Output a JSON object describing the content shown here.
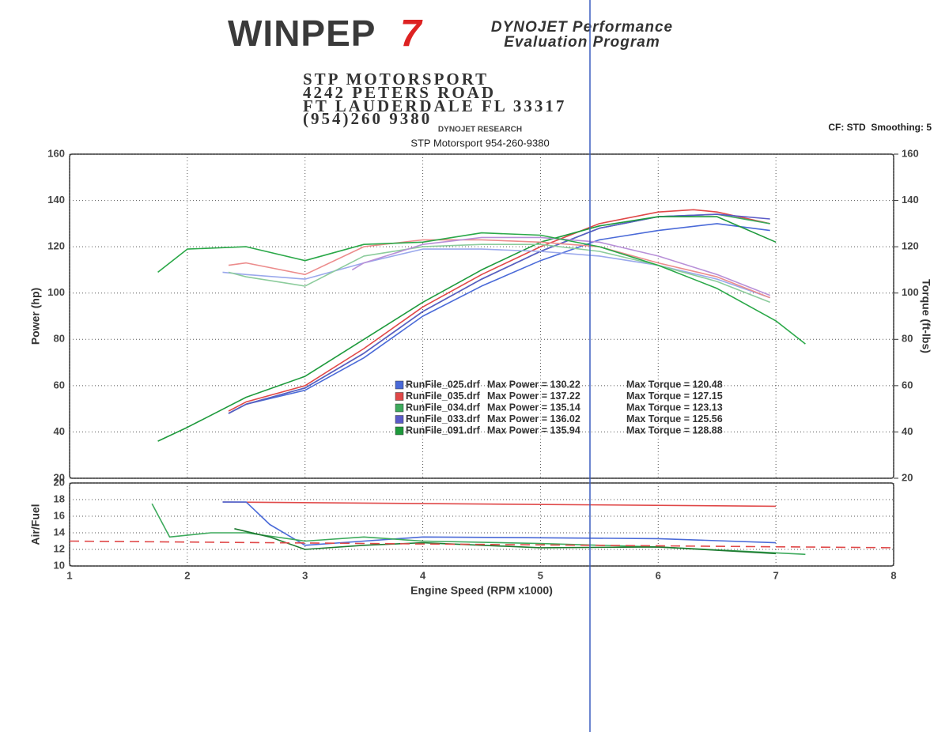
{
  "header": {
    "logo": "WINPEP",
    "logo_version": "7",
    "tagline_1": "DYNOJET Performance",
    "tagline_2": "Evaluation Program",
    "address": [
      "STP MOTORSPORT",
      "4242 PETERS ROAD",
      "FT LAUDERDALE FL 33317",
      "(954)260 9380"
    ],
    "research": "DYNOJET RESEARCH",
    "shop": "STP Motorsport 954-260-9380",
    "settings": "CF: STD  Smoothing: 5"
  },
  "chart_data": [
    {
      "type": "line",
      "ylabel": "Power (hp)",
      "y2label": "Torque (ft-lbs)",
      "xlim": [
        1,
        8
      ],
      "ylim": [
        20,
        160
      ],
      "yticks": [
        20,
        40,
        60,
        80,
        100,
        120,
        140,
        160
      ],
      "y2lim": [
        20,
        160
      ],
      "y2ticks": [
        20,
        40,
        60,
        80,
        100,
        120,
        140,
        160
      ],
      "grid": true,
      "series": [
        {
          "name": "RunFile_025.drf",
          "max_power": "Max Power = 130.22",
          "max_torque": "Max Torque = 120.48",
          "color": "#4a6ad8",
          "x": [
            2.35,
            2.5,
            3,
            3.5,
            4,
            4.5,
            5,
            5.5,
            6,
            6.5,
            6.95
          ],
          "values": [
            48,
            52,
            58,
            72,
            90,
            103,
            114,
            123,
            127,
            130,
            127
          ]
        },
        {
          "name": "RunFile_035.drf",
          "max_power": "Max Power = 137.22",
          "max_torque": "Max Torque = 127.15",
          "color": "#e04848",
          "x": [
            2.35,
            2.5,
            3,
            3.5,
            4,
            4.5,
            5,
            5.5,
            6,
            6.3,
            6.5,
            6.95
          ],
          "values": [
            49,
            53,
            60,
            76,
            94,
            108,
            120,
            130,
            135,
            136,
            135,
            130
          ]
        },
        {
          "name": "RunFile_034.drf",
          "max_power": "Max Power = 135.14",
          "max_torque": "Max Torque = 123.13",
          "color": "#3daa5c",
          "x": [
            2.35,
            2.5,
            3,
            3.5,
            4,
            4.5,
            5,
            5.5,
            6,
            6.5,
            6.95
          ],
          "values": [
            48,
            52,
            59,
            74,
            92,
            106,
            118,
            128,
            133,
            134,
            130
          ]
        },
        {
          "name": "RunFile_033.drf",
          "max_power": "Max Power = 136.02",
          "max_torque": "Max Torque = 125.56",
          "color": "#5a5ac8",
          "x": [
            2.35,
            2.5,
            3,
            3.5,
            4,
            4.5,
            5,
            5.5,
            6,
            6.5,
            6.95
          ],
          "values": [
            48,
            52,
            59,
            74,
            92,
            106,
            118,
            128,
            133,
            134,
            132
          ]
        },
        {
          "name": "RunFile_091.drf",
          "max_power": "Max Power = 135.94",
          "max_torque": "Max Torque = 128.88",
          "color": "#1e9a3c",
          "x": [
            1.75,
            2,
            2.5,
            3,
            3.5,
            4,
            4.5,
            5,
            5.5,
            6,
            6.5,
            7
          ],
          "values": [
            36,
            42,
            55,
            64,
            80,
            96,
            110,
            122,
            129,
            133,
            133,
            122
          ]
        },
        {
          "axis": "y2",
          "color": "#9aa8ec",
          "x": [
            2.3,
            2.5,
            3,
            3.5,
            4,
            4.5,
            5,
            5.5,
            6,
            6.5,
            6.95
          ],
          "values": [
            109,
            108,
            106,
            113,
            119,
            119,
            118,
            116,
            112,
            106,
            98
          ]
        },
        {
          "axis": "y2",
          "color": "#ec8c8c",
          "x": [
            2.35,
            2.5,
            3,
            3.5,
            4,
            4.5,
            5,
            5.5,
            6,
            6.5,
            6.95
          ],
          "values": [
            112,
            113,
            108,
            120,
            123,
            123,
            122,
            120,
            113,
            107,
            98
          ]
        },
        {
          "axis": "y2",
          "color": "#8ccc9c",
          "x": [
            2.35,
            2.5,
            3,
            3.5,
            4,
            4.5,
            5,
            5.5,
            6,
            6.5,
            6.95
          ],
          "values": [
            109,
            107,
            103,
            116,
            120,
            121,
            121,
            118,
            112,
            105,
            96
          ]
        },
        {
          "axis": "y2",
          "color": "#b890d8",
          "x": [
            3.4,
            3.5,
            4,
            4.5,
            5,
            5.5,
            6,
            6.5,
            6.95
          ],
          "values": [
            110,
            113,
            121,
            124,
            124,
            122,
            116,
            108,
            99
          ]
        },
        {
          "axis": "y2",
          "color": "#2aa848",
          "x": [
            1.75,
            2,
            2.5,
            3,
            3.5,
            4,
            4.5,
            5,
            5.5,
            6,
            6.5,
            7,
            7.25
          ],
          "values": [
            109,
            119,
            120,
            114,
            121,
            122,
            126,
            125,
            120,
            112,
            102,
            88,
            78
          ]
        }
      ]
    },
    {
      "type": "line",
      "ylabel": "Air/Fuel",
      "xlabel": "Engine Speed (RPM x1000)",
      "xlim": [
        1,
        8
      ],
      "xticks": [
        1,
        2,
        3,
        4,
        5,
        6,
        7,
        8
      ],
      "ylim": [
        10,
        20
      ],
      "yticks": [
        10,
        12,
        14,
        16,
        18,
        20
      ],
      "grid": true,
      "series": [
        {
          "color": "#e04848",
          "x": [
            2.3,
            7
          ],
          "values": [
            17.7,
            17.2
          ]
        },
        {
          "color": "#4a6ad8",
          "x": [
            2.3,
            2.5,
            2.7,
            3,
            3.5,
            4,
            5,
            6,
            7
          ],
          "values": [
            17.7,
            17.7,
            15,
            12.5,
            13,
            13.5,
            13.4,
            13.3,
            12.8
          ]
        },
        {
          "color": "#3daa5c",
          "x": [
            1.7,
            1.85,
            2.2,
            2.5,
            3,
            3.5,
            4,
            5,
            6,
            7.25
          ],
          "values": [
            17.5,
            13.5,
            14,
            14,
            13,
            13.5,
            13,
            12.7,
            12.3,
            11.4
          ]
        },
        {
          "color": "#1e7a30",
          "x": [
            2.4,
            2.7,
            3,
            3.5,
            4,
            5,
            6,
            7
          ],
          "values": [
            14.5,
            13.5,
            12,
            12.5,
            12.8,
            12.2,
            12.3,
            11.5
          ]
        },
        {
          "color": "#e04848",
          "dashed": true,
          "x": [
            1,
            8
          ],
          "values": [
            13,
            12.2
          ]
        }
      ]
    }
  ]
}
